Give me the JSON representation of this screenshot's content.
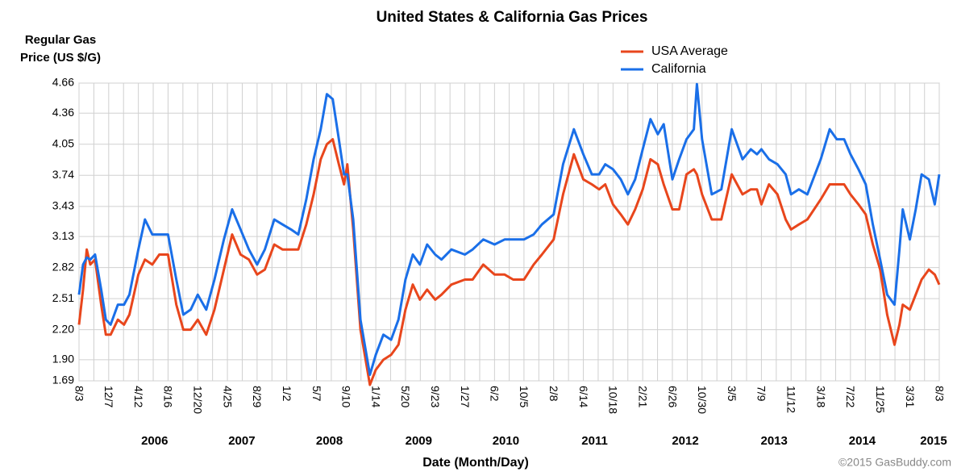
{
  "chart_data": {
    "type": "line",
    "title": "United States & California Gas Prices",
    "y_label": [
      "Regular Gas",
      "Price (US $/G)"
    ],
    "x_label": "Date (Month/Day)",
    "credit": "©2015 GasBuddy.com",
    "legend": "top",
    "grid": true,
    "x": [
      "2005-08-03",
      "2005-08-20",
      "2005-09-05",
      "2005-09-20",
      "2005-10-10",
      "2005-11-05",
      "2005-11-25",
      "2005-12-15",
      "2006-01-15",
      "2006-02-10",
      "2006-03-05",
      "2006-04-12",
      "2006-05-10",
      "2006-06-10",
      "2006-07-10",
      "2006-08-16",
      "2006-09-20",
      "2006-10-20",
      "2006-11-20",
      "2006-12-20",
      "2007-01-25",
      "2007-03-01",
      "2007-04-10",
      "2007-05-15",
      "2007-06-20",
      "2007-07-25",
      "2007-08-29",
      "2007-10-01",
      "2007-11-10",
      "2007-12-15",
      "2008-01-20",
      "2008-02-20",
      "2008-03-25",
      "2008-04-25",
      "2008-05-25",
      "2008-06-20",
      "2008-07-15",
      "2008-08-10",
      "2008-09-01",
      "2008-09-15",
      "2008-10-10",
      "2008-11-10",
      "2008-12-20",
      "2009-01-14",
      "2009-02-15",
      "2009-03-20",
      "2009-04-20",
      "2009-05-20",
      "2009-06-20",
      "2009-07-20",
      "2009-08-20",
      "2009-09-23",
      "2009-10-20",
      "2009-12-01",
      "2010-01-27",
      "2010-03-01",
      "2010-04-15",
      "2010-06-02",
      "2010-07-15",
      "2010-08-20",
      "2010-10-05",
      "2010-11-15",
      "2010-12-20",
      "2011-02-08",
      "2011-03-20",
      "2011-05-05",
      "2011-06-14",
      "2011-07-20",
      "2011-08-20",
      "2011-09-15",
      "2011-10-18",
      "2011-11-20",
      "2011-12-20",
      "2012-01-20",
      "2012-02-21",
      "2012-03-25",
      "2012-04-25",
      "2012-05-20",
      "2012-06-26",
      "2012-07-25",
      "2012-08-25",
      "2012-09-25",
      "2012-10-08",
      "2012-10-30",
      "2012-12-10",
      "2013-01-20",
      "2013-03-05",
      "2013-04-20",
      "2013-05-25",
      "2013-06-20",
      "2013-07-09",
      "2013-08-10",
      "2013-09-15",
      "2013-10-20",
      "2013-11-12",
      "2013-12-15",
      "2014-01-20",
      "2014-03-18",
      "2014-04-25",
      "2014-05-25",
      "2014-06-25",
      "2014-07-22",
      "2014-08-25",
      "2014-09-25",
      "2014-10-25",
      "2014-11-25",
      "2014-12-25",
      "2015-01-25",
      "2015-02-15",
      "2015-03-01",
      "2015-03-31",
      "2015-04-25",
      "2015-05-20",
      "2015-06-20",
      "2015-07-15",
      "2015-08-03"
    ],
    "series": [
      {
        "name": "USA Average",
        "color": "#e8461c",
        "values": [
          2.25,
          2.6,
          3.0,
          2.85,
          2.9,
          2.45,
          2.15,
          2.15,
          2.3,
          2.25,
          2.35,
          2.75,
          2.9,
          2.85,
          2.95,
          2.95,
          2.45,
          2.2,
          2.2,
          2.3,
          2.15,
          2.4,
          2.8,
          3.15,
          2.95,
          2.9,
          2.75,
          2.8,
          3.05,
          3.0,
          3.0,
          3.0,
          3.25,
          3.55,
          3.9,
          4.05,
          4.1,
          3.85,
          3.65,
          3.85,
          3.2,
          2.2,
          1.65,
          1.8,
          1.9,
          1.95,
          2.05,
          2.4,
          2.65,
          2.5,
          2.6,
          2.5,
          2.55,
          2.65,
          2.7,
          2.7,
          2.85,
          2.75,
          2.75,
          2.7,
          2.7,
          2.85,
          2.95,
          3.1,
          3.55,
          3.95,
          3.7,
          3.65,
          3.6,
          3.65,
          3.45,
          3.35,
          3.25,
          3.4,
          3.6,
          3.9,
          3.85,
          3.65,
          3.4,
          3.4,
          3.75,
          3.8,
          3.75,
          3.55,
          3.3,
          3.3,
          3.75,
          3.55,
          3.6,
          3.6,
          3.45,
          3.65,
          3.55,
          3.3,
          3.2,
          3.25,
          3.3,
          3.5,
          3.65,
          3.65,
          3.65,
          3.55,
          3.45,
          3.35,
          3.05,
          2.8,
          2.35,
          2.05,
          2.25,
          2.45,
          2.4,
          2.55,
          2.7,
          2.8,
          2.75,
          2.65
        ]
      },
      {
        "name": "California",
        "color": "#1a6fe8",
        "values": [
          2.55,
          2.85,
          2.92,
          2.9,
          2.95,
          2.6,
          2.3,
          2.25,
          2.45,
          2.45,
          2.55,
          3.0,
          3.3,
          3.15,
          3.15,
          3.15,
          2.7,
          2.35,
          2.4,
          2.55,
          2.4,
          2.7,
          3.1,
          3.4,
          3.2,
          3.0,
          2.85,
          3.0,
          3.3,
          3.25,
          3.2,
          3.15,
          3.5,
          3.9,
          4.2,
          4.55,
          4.5,
          4.1,
          3.75,
          3.75,
          3.3,
          2.3,
          1.75,
          1.95,
          2.15,
          2.1,
          2.3,
          2.7,
          2.95,
          2.85,
          3.05,
          2.95,
          2.9,
          3.0,
          2.95,
          3.0,
          3.1,
          3.05,
          3.1,
          3.1,
          3.1,
          3.15,
          3.25,
          3.35,
          3.85,
          4.2,
          3.95,
          3.75,
          3.75,
          3.85,
          3.8,
          3.7,
          3.55,
          3.7,
          4.0,
          4.3,
          4.15,
          4.25,
          3.7,
          3.9,
          4.1,
          4.2,
          4.65,
          4.1,
          3.55,
          3.6,
          4.2,
          3.9,
          4.0,
          3.95,
          4.0,
          3.9,
          3.85,
          3.75,
          3.55,
          3.6,
          3.55,
          3.9,
          4.2,
          4.1,
          4.1,
          3.95,
          3.8,
          3.65,
          3.25,
          2.9,
          2.55,
          2.45,
          3.0,
          3.4,
          3.1,
          3.4,
          3.75,
          3.7,
          3.45,
          3.75
        ]
      }
    ],
    "xlim": [
      "2005-08-03",
      "2015-08-03"
    ],
    "xticks": [
      {
        "value": "2005-08-03",
        "label": "8/3"
      },
      {
        "value": "2005-12-07",
        "label": "12/7"
      },
      {
        "value": "2006-04-12",
        "label": "4/12"
      },
      {
        "value": "2006-08-16",
        "label": "8/16"
      },
      {
        "value": "2006-12-20",
        "label": "12/20"
      },
      {
        "value": "2007-04-25",
        "label": "4/25"
      },
      {
        "value": "2007-08-29",
        "label": "8/29"
      },
      {
        "value": "2008-01-02",
        "label": "1/2"
      },
      {
        "value": "2008-05-07",
        "label": "5/7"
      },
      {
        "value": "2008-09-10",
        "label": "9/10"
      },
      {
        "value": "2009-01-14",
        "label": "1/14"
      },
      {
        "value": "2009-05-20",
        "label": "5/20"
      },
      {
        "value": "2009-09-23",
        "label": "9/23"
      },
      {
        "value": "2010-01-27",
        "label": "1/27"
      },
      {
        "value": "2010-06-02",
        "label": "6/2"
      },
      {
        "value": "2010-10-05",
        "label": "10/5"
      },
      {
        "value": "2011-02-08",
        "label": "2/8"
      },
      {
        "value": "2011-06-14",
        "label": "6/14"
      },
      {
        "value": "2011-10-18",
        "label": "10/18"
      },
      {
        "value": "2012-02-21",
        "label": "2/21"
      },
      {
        "value": "2012-06-26",
        "label": "6/26"
      },
      {
        "value": "2012-10-30",
        "label": "10/30"
      },
      {
        "value": "2013-03-05",
        "label": "3/5"
      },
      {
        "value": "2013-07-09",
        "label": "7/9"
      },
      {
        "value": "2013-11-12",
        "label": "11/12"
      },
      {
        "value": "2014-03-18",
        "label": "3/18"
      },
      {
        "value": "2014-07-22",
        "label": "7/22"
      },
      {
        "value": "2014-11-25",
        "label": "11/25"
      },
      {
        "value": "2015-03-31",
        "label": "3/31"
      },
      {
        "value": "2015-08-03",
        "label": "8/3"
      }
    ],
    "year_labels": [
      {
        "value": "2006-06-20",
        "label": "2006"
      },
      {
        "value": "2007-06-25",
        "label": "2007"
      },
      {
        "value": "2008-07-01",
        "label": "2008"
      },
      {
        "value": "2009-07-15",
        "label": "2009"
      },
      {
        "value": "2010-07-20",
        "label": "2010"
      },
      {
        "value": "2011-08-01",
        "label": "2011"
      },
      {
        "value": "2012-08-20",
        "label": "2012"
      },
      {
        "value": "2013-09-01",
        "label": "2013"
      },
      {
        "value": "2014-09-10",
        "label": "2014"
      },
      {
        "value": "2015-07-10",
        "label": "2015"
      }
    ],
    "ylim": [
      1.69,
      4.66
    ],
    "yticks": [
      1.69,
      {
        "value": 1.9,
        "label": "1.90"
      },
      {
        "value": 2.2,
        "label": "2.20"
      },
      2.51,
      2.82,
      3.13,
      3.43,
      3.74,
      4.05,
      4.36,
      4.66
    ]
  }
}
